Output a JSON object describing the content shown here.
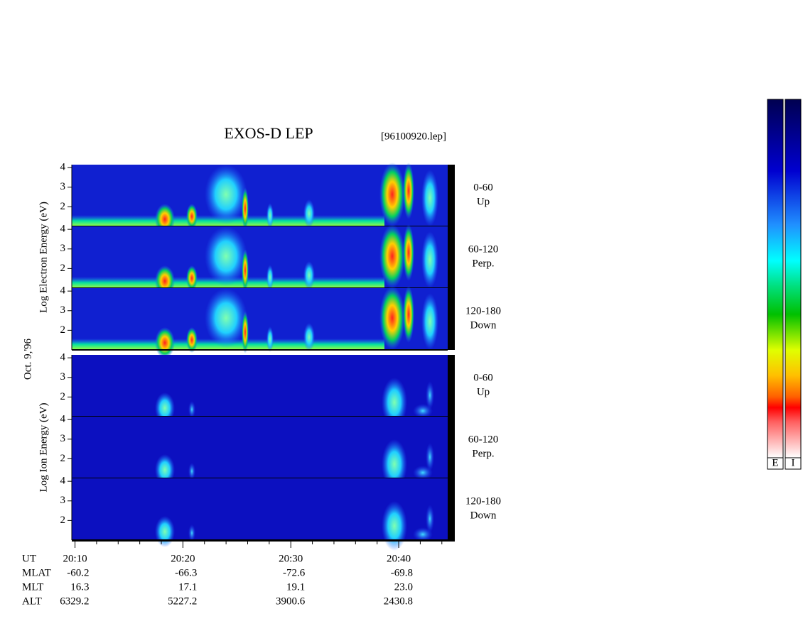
{
  "chart_data": {
    "type": "spectrogram",
    "title": "EXOS-D LEP",
    "file_label": "[96100920.lep]",
    "date_label": "Oct. 9,'96",
    "groups": [
      {
        "ylabel": "Log Electron Energy (eV)",
        "kind": "electron",
        "panels": [
          {
            "angle": "0-60",
            "direction": "Up"
          },
          {
            "angle": "60-120",
            "direction": "Perp."
          },
          {
            "angle": "120-180",
            "direction": "Down"
          }
        ]
      },
      {
        "ylabel": "Log Ion Energy (eV)",
        "kind": "ion",
        "panels": [
          {
            "angle": "0-60",
            "direction": "Up"
          },
          {
            "angle": "60-120",
            "direction": "Perp."
          },
          {
            "angle": "120-180",
            "direction": "Down"
          }
        ]
      }
    ],
    "ylim": [
      1,
      4.15
    ],
    "yticks": [
      2,
      3,
      4
    ],
    "xlim": [
      9.7,
      45.2
    ],
    "xticks": [
      {
        "value": 10,
        "label": "20:10"
      },
      {
        "value": 20,
        "label": "20:20"
      },
      {
        "value": 30,
        "label": "20:30"
      },
      {
        "value": 40,
        "label": "20:40"
      }
    ],
    "minor_xticks": [
      12,
      14,
      16,
      18,
      22,
      24,
      26,
      28,
      32,
      34,
      36,
      38,
      42,
      44
    ],
    "orbit": {
      "labels": [
        "UT",
        "MLAT",
        "MLT",
        "ALT"
      ],
      "rows": [
        [
          "-60.2",
          "-66.3",
          "-72.6",
          "-69.8"
        ],
        [
          "16.3",
          "17.1",
          "19.1",
          "23.0"
        ],
        [
          "6329.2",
          "5227.2",
          "3900.6",
          "2430.8"
        ]
      ]
    },
    "colorbar_labels": [
      "E",
      "I"
    ]
  }
}
